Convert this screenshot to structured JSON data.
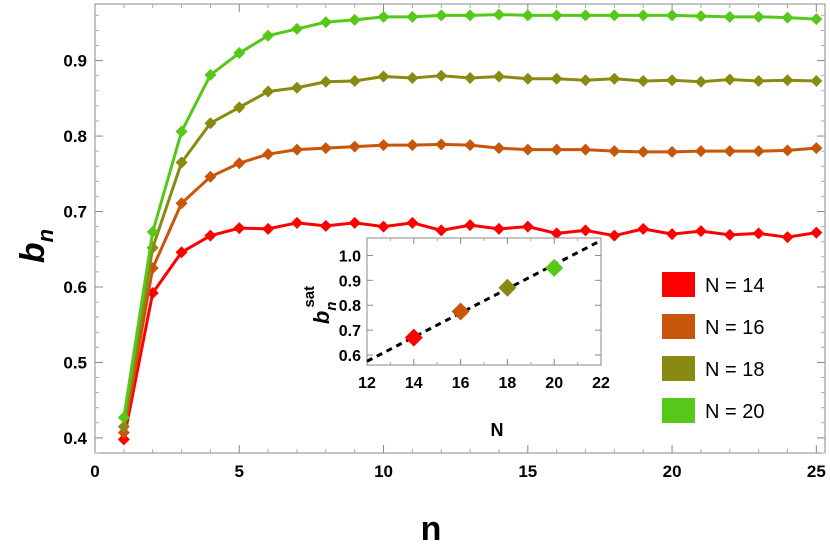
{
  "chart_data": [
    {
      "type": "line",
      "xlabel": "n",
      "ylabel": "b",
      "ylabel_subscript": "n",
      "xlim": [
        0,
        25.3
      ],
      "ylim": [
        0.38,
        0.975
      ],
      "xticks": [
        0,
        5,
        10,
        15,
        20,
        25
      ],
      "yticks": [
        0.4,
        0.5,
        0.6,
        0.7,
        0.8,
        0.9
      ],
      "x": [
        1,
        2,
        3,
        4,
        5,
        6,
        7,
        8,
        9,
        10,
        11,
        12,
        13,
        14,
        15,
        16,
        17,
        18,
        19,
        20,
        21,
        22,
        23,
        24,
        25
      ],
      "series": [
        {
          "name": "N = 14",
          "color": "#ff0000",
          "values": [
            0.398,
            0.592,
            0.646,
            0.668,
            0.678,
            0.677,
            0.685,
            0.681,
            0.685,
            0.68,
            0.685,
            0.675,
            0.682,
            0.677,
            0.68,
            0.671,
            0.675,
            0.668,
            0.677,
            0.67,
            0.674,
            0.669,
            0.671,
            0.666,
            0.672
          ]
        },
        {
          "name": "N = 16",
          "color": "#c8560a",
          "values": [
            0.407,
            0.625,
            0.711,
            0.746,
            0.764,
            0.776,
            0.782,
            0.784,
            0.786,
            0.788,
            0.788,
            0.789,
            0.788,
            0.784,
            0.782,
            0.782,
            0.782,
            0.78,
            0.779,
            0.779,
            0.78,
            0.78,
            0.78,
            0.781,
            0.784
          ]
        },
        {
          "name": "N = 18",
          "color": "#8a8a12",
          "values": [
            0.415,
            0.652,
            0.765,
            0.817,
            0.838,
            0.859,
            0.864,
            0.872,
            0.873,
            0.879,
            0.877,
            0.88,
            0.877,
            0.879,
            0.876,
            0.876,
            0.874,
            0.876,
            0.873,
            0.874,
            0.872,
            0.875,
            0.873,
            0.874,
            0.873
          ]
        },
        {
          "name": "N = 20",
          "color": "#55c81a",
          "values": [
            0.427,
            0.673,
            0.806,
            0.881,
            0.91,
            0.933,
            0.942,
            0.951,
            0.954,
            0.958,
            0.958,
            0.96,
            0.96,
            0.961,
            0.96,
            0.96,
            0.96,
            0.96,
            0.96,
            0.96,
            0.959,
            0.958,
            0.958,
            0.957,
            0.955
          ]
        }
      ],
      "legend": {
        "placement": "right",
        "entries": [
          "N = 14",
          "N = 16",
          "N = 18",
          "N = 20"
        ]
      }
    },
    {
      "type": "scatter",
      "placement": "inset",
      "xlabel": "N",
      "ylabel": "b",
      "ylabel_subscript": "n",
      "ylabel_superscript": "sat",
      "xlim": [
        12,
        22
      ],
      "ylim": [
        0.56,
        1.07
      ],
      "xticks": [
        12,
        14,
        16,
        18,
        20,
        22
      ],
      "yticks": [
        0.6,
        0.7,
        0.8,
        0.9,
        1.0
      ],
      "ytick_labels": [
        "0.6",
        "0.7",
        "0.8",
        "0.9",
        "1.0"
      ],
      "points": [
        {
          "x": 14,
          "y": 0.67,
          "color": "#ff0000"
        },
        {
          "x": 16,
          "y": 0.775,
          "color": "#c8560a"
        },
        {
          "x": 18,
          "y": 0.87,
          "color": "#8a8a12"
        },
        {
          "x": 20,
          "y": 0.95,
          "color": "#55c81a"
        }
      ],
      "fit_line": {
        "style": "dashed",
        "color": "#000000",
        "x": [
          12,
          22
        ],
        "y": [
          0.575,
          1.06
        ]
      }
    }
  ]
}
